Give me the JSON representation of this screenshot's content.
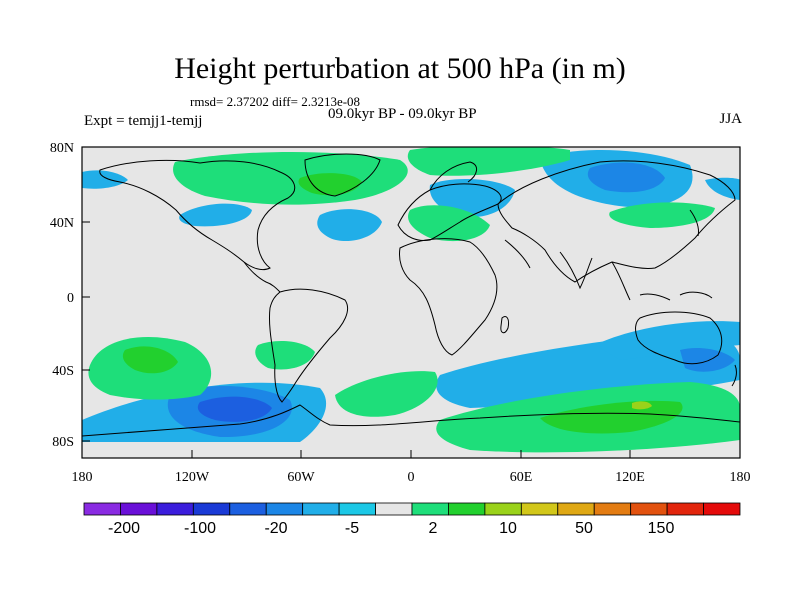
{
  "title": "Height perturbation at 500 hPa (in m)",
  "stats": "rmsd= 2.37202  diff= 2.3213e-08",
  "experiment": "Expt = temjj1-temjj",
  "period": "09.0kyr BP - 09.0kyr BP",
  "season": "JJA",
  "lat_ticks": [
    "80N",
    "40N",
    "0",
    "40S",
    "80S"
  ],
  "lon_ticks": [
    "180",
    "120W",
    "60W",
    "0",
    "60E",
    "120E",
    "180"
  ],
  "colorbar": {
    "colors": [
      "#8a2be2",
      "#6a10d8",
      "#3b1ddc",
      "#1a3ad6",
      "#1c5fe0",
      "#1c86e6",
      "#21aee8",
      "#1cc8e6",
      "#e6e6e6",
      "#1ede7a",
      "#22d02e",
      "#9ad21a",
      "#d2c71a",
      "#dfa814",
      "#e37c12",
      "#e2520f",
      "#e2250c",
      "#e40a0a"
    ],
    "labels": [
      "-200",
      "-100",
      "-20",
      "-5",
      "2",
      "10",
      "50",
      "150"
    ]
  }
}
